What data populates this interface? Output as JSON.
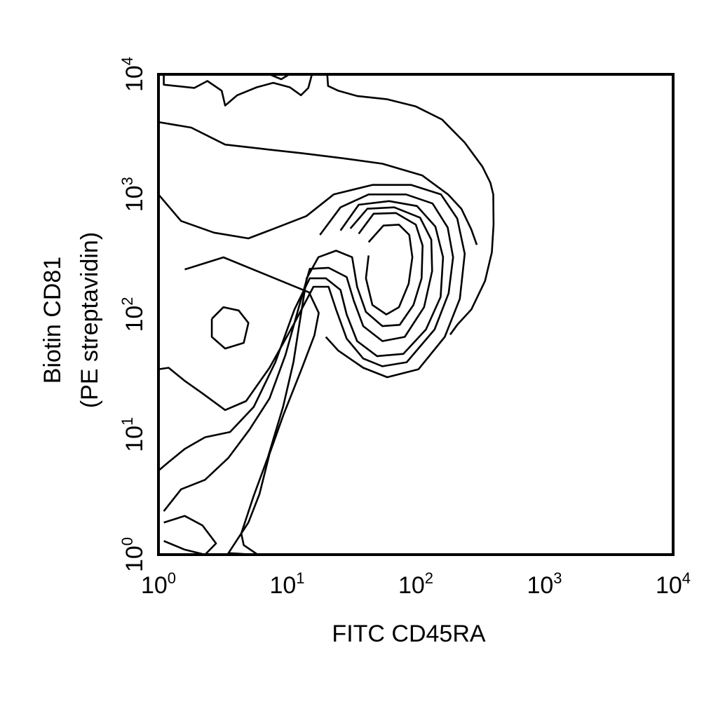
{
  "chart_data": {
    "type": "contour",
    "x_axis": {
      "label": "FITC CD45RA",
      "scale": "log",
      "range": [
        1,
        10000
      ],
      "ticks": [
        {
          "base": "10",
          "exp": "0",
          "value": 1
        },
        {
          "base": "10",
          "exp": "1",
          "value": 10
        },
        {
          "base": "10",
          "exp": "2",
          "value": 100
        },
        {
          "base": "10",
          "exp": "3",
          "value": 1000
        },
        {
          "base": "10",
          "exp": "4",
          "value": 10000
        }
      ]
    },
    "y_axis": {
      "label_line1": "Biotin CD81",
      "label_line2": "(PE streptavidin)",
      "scale": "log",
      "range": [
        1,
        10000
      ],
      "ticks": [
        {
          "base": "10",
          "exp": "0",
          "value": 1
        },
        {
          "base": "10",
          "exp": "1",
          "value": 10
        },
        {
          "base": "10",
          "exp": "2",
          "value": 100
        },
        {
          "base": "10",
          "exp": "3",
          "value": 1000
        },
        {
          "base": "10",
          "exp": "4",
          "value": 10000
        }
      ]
    },
    "grid": false,
    "line_color": "#000000",
    "contours": [
      {
        "name": "",
        "points": [
          [
            1.6,
            237
          ],
          [
            3.2,
            299
          ],
          [
            6.8,
            215
          ],
          [
            14.8,
            153
          ],
          [
            17.6,
            103
          ],
          [
            16.3,
            67
          ],
          [
            12.8,
            34
          ],
          [
            9.4,
            14.8
          ],
          [
            7.3,
            6.9
          ],
          [
            6.1,
            3.2
          ],
          [
            5.0,
            1.85
          ],
          [
            3.5,
            1.03
          ],
          [
            5.6,
            1.0
          ]
        ]
      },
      {
        "name": "",
        "points": [
          [
            1,
            4000
          ],
          [
            1.8,
            3600
          ],
          [
            3.3,
            2600
          ],
          [
            6.3,
            2400
          ],
          [
            13.1,
            2200
          ],
          [
            27,
            2000
          ],
          [
            55,
            1800
          ],
          [
            112,
            1440
          ],
          [
            178,
            1000
          ],
          [
            226,
            760
          ],
          [
            270,
            510
          ],
          [
            298,
            380
          ]
        ]
      },
      {
        "name": "",
        "points": [
          [
            1,
            1000
          ],
          [
            1.5,
            600
          ],
          [
            2.7,
            480
          ],
          [
            5.0,
            430
          ],
          [
            7.6,
            510
          ],
          [
            14.1,
            660
          ],
          [
            23,
            1000
          ],
          [
            46,
            1200
          ],
          [
            92,
            1200
          ],
          [
            157,
            1000
          ],
          [
            210,
            630
          ],
          [
            240,
            320
          ],
          [
            220,
            135
          ],
          [
            168,
            65
          ],
          [
            105,
            35
          ],
          [
            60,
            30
          ],
          [
            39,
            36
          ],
          [
            25,
            50
          ],
          [
            20,
            65
          ]
        ]
      },
      {
        "name": "",
        "points": [
          [
            18,
            460
          ],
          [
            26,
            780
          ],
          [
            43,
            1000
          ],
          [
            84,
            1000
          ],
          [
            135,
            840
          ],
          [
            177,
            530
          ],
          [
            195,
            300
          ],
          [
            180,
            150
          ],
          [
            140,
            75
          ],
          [
            85,
            40
          ],
          [
            55,
            37
          ],
          [
            39,
            43
          ],
          [
            29,
            63
          ],
          [
            24,
            110
          ],
          [
            21,
            170
          ],
          [
            16,
            170
          ],
          [
            11.2,
            82
          ],
          [
            7.3,
            36
          ],
          [
            4.8,
            19
          ],
          [
            3.3,
            16
          ],
          [
            2.2,
            22
          ],
          [
            1.6,
            28
          ],
          [
            1.2,
            36
          ],
          [
            1,
            35
          ]
        ]
      },
      {
        "name": "",
        "points": [
          [
            26,
            500
          ],
          [
            36,
            820
          ],
          [
            62,
            880
          ],
          [
            102,
            800
          ],
          [
            142,
            540
          ],
          [
            163,
            300
          ],
          [
            156,
            140
          ],
          [
            120,
            75
          ],
          [
            80,
            47
          ],
          [
            50,
            45
          ],
          [
            35,
            60
          ],
          [
            29,
            100
          ],
          [
            26,
            160
          ],
          [
            20,
            200
          ],
          [
            15,
            200
          ],
          [
            11.4,
            110
          ],
          [
            8.1,
            40
          ],
          [
            5.5,
            17
          ],
          [
            3.6,
            10.5
          ],
          [
            2.3,
            9.5
          ],
          [
            1.6,
            7.6
          ],
          [
            1.2,
            5.9
          ],
          [
            1,
            5
          ]
        ]
      },
      {
        "name": "",
        "points": [
          [
            31,
            520
          ],
          [
            42,
            760
          ],
          [
            68,
            780
          ],
          [
            108,
            640
          ],
          [
            132,
            420
          ],
          [
            134,
            230
          ],
          [
            116,
            115
          ],
          [
            82,
            65
          ],
          [
            55,
            60
          ],
          [
            39,
            80
          ],
          [
            33,
            130
          ],
          [
            29,
            205
          ],
          [
            21,
            245
          ],
          [
            15,
            240
          ],
          [
            12.2,
            110
          ],
          [
            9.7,
            46
          ],
          [
            7.3,
            20
          ],
          [
            5.1,
            11
          ],
          [
            3.5,
            6.4
          ],
          [
            2.3,
            4.2
          ],
          [
            1.5,
            3.5
          ],
          [
            1.1,
            2.3
          ]
        ]
      },
      {
        "name": "",
        "points": [
          [
            36,
            470
          ],
          [
            47,
            690
          ],
          [
            70,
            700
          ],
          [
            100,
            560
          ],
          [
            113,
            375
          ],
          [
            111,
            200
          ],
          [
            96,
            120
          ],
          [
            75,
            82
          ],
          [
            55,
            80
          ],
          [
            41,
            105
          ],
          [
            35,
            170
          ],
          [
            32,
            300
          ],
          [
            24,
            340
          ],
          [
            17.5,
            300
          ],
          [
            14.2,
            200
          ],
          [
            12.6,
            90
          ],
          [
            11.2,
            40
          ],
          [
            9.3,
            17
          ],
          [
            7.1,
            6.5
          ],
          [
            5.5,
            3.1
          ],
          [
            4.4,
            1.5
          ],
          [
            4.6,
            1.2
          ],
          [
            5.9,
            1.0
          ]
        ]
      },
      {
        "name": "",
        "points": [
          [
            43,
            400
          ],
          [
            56,
            550
          ],
          [
            74,
            560
          ],
          [
            89,
            460
          ],
          [
            94,
            300
          ],
          [
            88,
            180
          ],
          [
            74,
            115
          ],
          [
            59,
            100
          ],
          [
            46,
            120
          ],
          [
            41,
            200
          ],
          [
            43,
            310
          ]
        ]
      },
      {
        "name": "",
        "points": [
          [
            2.6,
            92
          ],
          [
            3.2,
            115
          ],
          [
            4.2,
            108
          ],
          [
            5.0,
            85
          ],
          [
            4.6,
            58
          ],
          [
            3.3,
            52
          ],
          [
            2.6,
            65
          ],
          [
            2.6,
            92
          ]
        ]
      },
      {
        "name": "",
        "points": [
          [
            1.1,
            1.85
          ],
          [
            1.6,
            2.1
          ],
          [
            2.2,
            1.75
          ],
          [
            2.8,
            1.24
          ],
          [
            2.3,
            1.0
          ],
          [
            1.6,
            1.1
          ],
          [
            1.1,
            1.3
          ]
        ]
      },
      {
        "name": "",
        "points": [
          [
            1.1,
            10000
          ],
          [
            1.1,
            8200
          ],
          [
            1.9,
            7700
          ],
          [
            2.4,
            8800
          ],
          [
            3.1,
            7300
          ],
          [
            3.3,
            5500
          ],
          [
            4.1,
            6700
          ],
          [
            5.8,
            7800
          ],
          [
            7.8,
            8500
          ],
          [
            10.5,
            7800
          ],
          [
            12.8,
            6700
          ],
          [
            14.6,
            7700
          ],
          [
            15.6,
            10000
          ]
        ]
      },
      {
        "name": "",
        "points": [
          [
            7.3,
            10000
          ],
          [
            9.0,
            9100
          ],
          [
            10.4,
            10000
          ]
        ]
      },
      {
        "name": "",
        "points": [
          [
            20.5,
            10000
          ],
          [
            20.8,
            8000
          ],
          [
            25,
            7300
          ],
          [
            35,
            6600
          ],
          [
            60,
            6200
          ],
          [
            100,
            5400
          ],
          [
            160,
            4200
          ],
          [
            240,
            2700
          ],
          [
            330,
            1700
          ],
          [
            380,
            1250
          ],
          [
            400,
            1000
          ],
          [
            402,
            560
          ],
          [
            390,
            330
          ],
          [
            345,
            190
          ],
          [
            270,
            110
          ],
          [
            210,
            82
          ],
          [
            185,
            68
          ]
        ]
      }
    ]
  }
}
